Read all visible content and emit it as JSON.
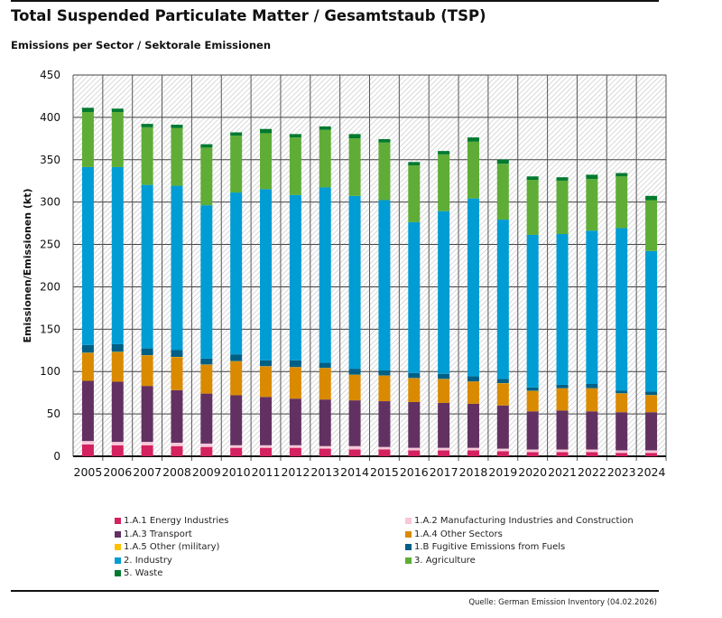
{
  "header": {
    "title": "Total Suspended Particulate Matter / Gesamtstaub (TSP)",
    "subtitle": "Emissions per Sector / Sektorale Emissionen"
  },
  "source": "Quelle: German Emission Inventory (04.02.2026)",
  "chart_data": {
    "type": "bar",
    "stacked": true,
    "title": "Total Suspended Particulate Matter / Gesamtstaub (TSP)",
    "subtitle": "Emissions per Sector / Sektorale Emissionen",
    "xlabel": "",
    "ylabel": "Emissionen/Emissionen (kt)",
    "ylim": [
      0,
      450
    ],
    "yticks": [
      0,
      50,
      100,
      150,
      200,
      250,
      300,
      350,
      400,
      450
    ],
    "grid": true,
    "legend_position": "bottom",
    "categories": [
      "2005",
      "2006",
      "2007",
      "2008",
      "2009",
      "2010",
      "2011",
      "2012",
      "2013",
      "2014",
      "2015",
      "2016",
      "2017",
      "2018",
      "2019",
      "2020",
      "2021",
      "2022",
      "2023",
      "2024"
    ],
    "series": [
      {
        "name": "1.A.1 Energy Industries",
        "color": "#d4215f",
        "values": [
          14,
          13,
          13,
          12,
          11,
          10,
          10,
          10,
          9,
          8,
          8,
          7,
          7,
          7,
          6,
          5,
          5,
          5,
          4,
          4
        ]
      },
      {
        "name": "1.A.2 Manufacturing Industries and Construction",
        "color": "#f7c6d9",
        "values": [
          4,
          4,
          4,
          4,
          4,
          3,
          3,
          3,
          3,
          4,
          3,
          3,
          3,
          3,
          3,
          3,
          3,
          3,
          3,
          3
        ]
      },
      {
        "name": "1.A.3 Transport",
        "color": "#623161",
        "values": [
          71,
          71,
          66,
          62,
          59,
          59,
          57,
          55,
          55,
          54,
          54,
          54,
          53,
          52,
          51,
          45,
          46,
          45,
          45,
          45
        ]
      },
      {
        "name": "1.A.4 Other Sectors",
        "color": "#d98a00",
        "values": [
          33,
          35,
          36,
          39,
          34,
          40,
          36,
          37,
          37,
          30,
          30,
          28,
          28,
          26,
          26,
          24,
          26,
          27,
          22,
          20
        ]
      },
      {
        "name": "1.A.5 Other (military)",
        "color": "#fbc100",
        "values": [
          0.3,
          0.3,
          0.3,
          0.3,
          0.3,
          0.3,
          0.3,
          0.3,
          0.3,
          0.3,
          0.3,
          0.3,
          0.3,
          0.3,
          0.3,
          0.3,
          0.3,
          0.3,
          0.3,
          0.3
        ]
      },
      {
        "name": "1.B Fugitive Emissions from Fuels",
        "color": "#005f85",
        "values": [
          9,
          9,
          8,
          8,
          7,
          8,
          7,
          8,
          6,
          7,
          6,
          6,
          6,
          6,
          5,
          4,
          4,
          5,
          3,
          4
        ]
      },
      {
        "name": "2. Industry",
        "color": "#009cd4",
        "values": [
          210,
          209,
          193,
          194,
          181,
          191,
          202,
          195,
          207,
          204,
          201,
          178,
          192,
          210,
          188,
          180,
          178,
          181,
          192,
          166
        ]
      },
      {
        "name": "3. Agriculture",
        "color": "#5fad36",
        "values": [
          65,
          65,
          68,
          68,
          68,
          67,
          66,
          68,
          68,
          68,
          68,
          67,
          67,
          67,
          66,
          65,
          63,
          61,
          61,
          60
        ]
      },
      {
        "name": "5. Waste",
        "color": "#007a2e",
        "values": [
          5,
          4,
          4,
          4,
          4,
          4,
          5,
          4,
          4,
          5,
          4,
          4,
          4,
          5,
          5,
          4,
          4,
          5,
          4,
          5
        ]
      }
    ]
  }
}
